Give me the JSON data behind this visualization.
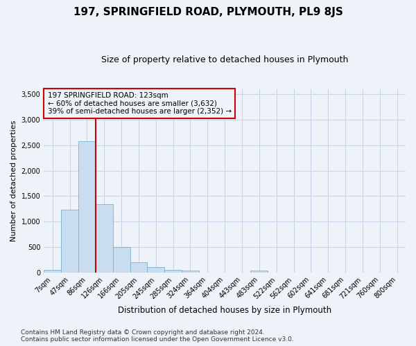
{
  "title": "197, SPRINGFIELD ROAD, PLYMOUTH, PL9 8JS",
  "subtitle": "Size of property relative to detached houses in Plymouth",
  "xlabel": "Distribution of detached houses by size in Plymouth",
  "ylabel": "Number of detached properties",
  "footer_line1": "Contains HM Land Registry data © Crown copyright and database right 2024.",
  "footer_line2": "Contains public sector information licensed under the Open Government Licence v3.0.",
  "annotation_line1": "197 SPRINGFIELD ROAD: 123sqm",
  "annotation_line2": "← 60% of detached houses are smaller (3,632)",
  "annotation_line3": "39% of semi-detached houses are larger (2,352) →",
  "bar_color": "#c9ddf0",
  "bar_edge_color": "#7bafd4",
  "vline_color": "#cc0000",
  "annotation_box_edge_color": "#cc0000",
  "grid_color": "#c8d4e8",
  "categories": [
    "7sqm",
    "47sqm",
    "86sqm",
    "126sqm",
    "166sqm",
    "205sqm",
    "245sqm",
    "285sqm",
    "324sqm",
    "364sqm",
    "404sqm",
    "443sqm",
    "483sqm",
    "522sqm",
    "562sqm",
    "602sqm",
    "641sqm",
    "681sqm",
    "721sqm",
    "760sqm",
    "800sqm"
  ],
  "values": [
    50,
    1230,
    2580,
    1340,
    500,
    195,
    110,
    50,
    40,
    0,
    0,
    0,
    40,
    0,
    0,
    0,
    0,
    0,
    0,
    0,
    0
  ],
  "vline_x": 3.0,
  "ylim": [
    0,
    3600
  ],
  "yticks": [
    0,
    500,
    1000,
    1500,
    2000,
    2500,
    3000,
    3500
  ],
  "background_color": "#eef2f9",
  "title_fontsize": 11,
  "subtitle_fontsize": 9,
  "ylabel_fontsize": 8,
  "xlabel_fontsize": 8.5,
  "tick_fontsize": 7,
  "annotation_fontsize": 7.5,
  "footer_fontsize": 6.5
}
